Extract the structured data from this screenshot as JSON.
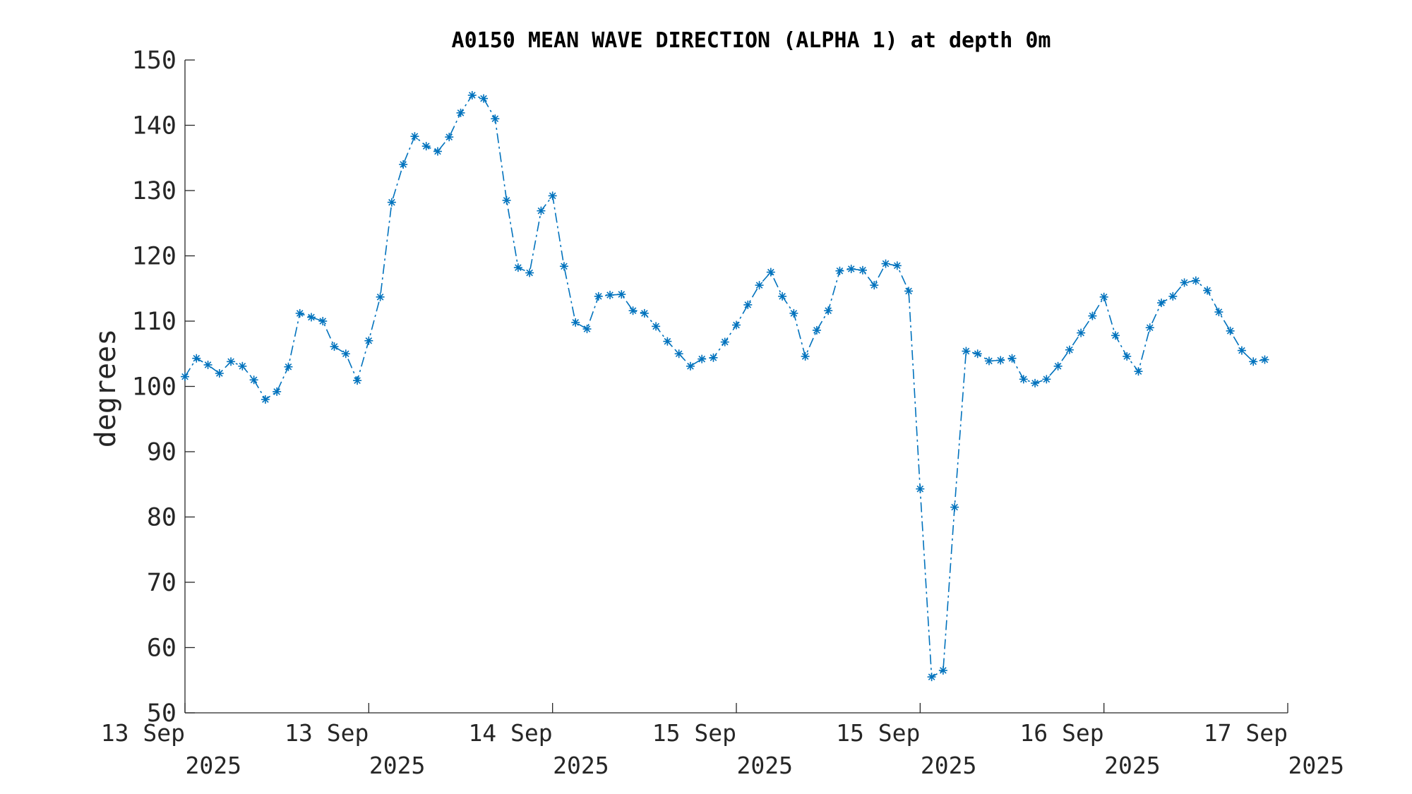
{
  "chart_data": {
    "type": "line",
    "title": "A0150 MEAN WAVE DIRECTION (ALPHA 1) at depth 0m",
    "xlabel": "",
    "ylabel": "degrees",
    "ylim": [
      50,
      150
    ],
    "yticks": [
      50,
      60,
      70,
      80,
      90,
      100,
      110,
      120,
      130,
      140,
      150
    ],
    "xlim": [
      0,
      96
    ],
    "xticks": [
      {
        "hour": 0,
        "label1": "13 Sep",
        "label2": "2025"
      },
      {
        "hour": 16,
        "label1": "13 Sep",
        "label2": "2025"
      },
      {
        "hour": 32,
        "label1": "14 Sep",
        "label2": "2025"
      },
      {
        "hour": 48,
        "label1": "15 Sep",
        "label2": "2025"
      },
      {
        "hour": 64,
        "label1": "15 Sep",
        "label2": "2025"
      },
      {
        "hour": 80,
        "label1": "16 Sep",
        "label2": "2025"
      },
      {
        "hour": 96,
        "label1": "17 Sep",
        "label2": "2025"
      }
    ],
    "grid": false,
    "series": [
      {
        "color": "#0072BD",
        "marker": "asterisk",
        "line_style": "dash-dot",
        "x": [
          0,
          1,
          2,
          3,
          4,
          5,
          6,
          7,
          8,
          9,
          10,
          11,
          12,
          13,
          14,
          15,
          16,
          17,
          18,
          19,
          20,
          21,
          22,
          23,
          24,
          25,
          26,
          27,
          28,
          29,
          30,
          31,
          32,
          33,
          34,
          35,
          36,
          37,
          38,
          39,
          40,
          41,
          42,
          43,
          44,
          45,
          46,
          47,
          48,
          49,
          50,
          51,
          52,
          53,
          54,
          55,
          56,
          57,
          58,
          59,
          60,
          61,
          62,
          63,
          64,
          65,
          66,
          67,
          68,
          69,
          70,
          71,
          72,
          73,
          74,
          75,
          76,
          77,
          78,
          79,
          80,
          81,
          82,
          83,
          84,
          85,
          86,
          87,
          88,
          89,
          90,
          91,
          92,
          93,
          94,
          95,
          96
        ],
        "values": [
          101.5,
          104.3,
          103.3,
          102.0,
          103.8,
          103.1,
          101.0,
          98.0,
          99.2,
          103.0,
          111.2,
          110.6,
          110.0,
          106.1,
          105.0,
          100.9,
          107.0,
          113.7,
          128.2,
          134.0,
          138.3,
          136.8,
          136.0,
          138.2,
          141.9,
          144.6,
          144.1,
          141.0,
          128.5,
          118.2,
          117.4,
          126.9,
          129.2,
          118.4,
          109.8,
          108.8,
          113.8,
          114.0,
          114.1,
          111.6,
          111.2,
          109.2,
          106.9,
          105.0,
          103.1,
          104.2,
          104.4,
          106.8,
          109.4,
          112.5,
          115.5,
          117.5,
          113.8,
          111.2,
          104.6,
          108.6,
          111.6,
          117.7,
          118.0,
          117.8,
          115.5,
          118.8,
          118.5,
          114.6,
          84.3,
          55.5,
          56.5,
          81.5,
          105.4,
          105.0,
          103.9,
          104.0,
          104.3,
          101.1,
          100.5,
          101.1,
          103.1,
          105.6,
          108.2,
          110.8,
          113.7,
          107.8,
          104.6,
          102.3,
          109.0,
          112.8,
          113.8,
          115.9,
          116.2,
          114.7,
          111.4,
          108.5,
          105.5,
          103.8,
          104.1,
          null,
          null
        ]
      }
    ]
  }
}
